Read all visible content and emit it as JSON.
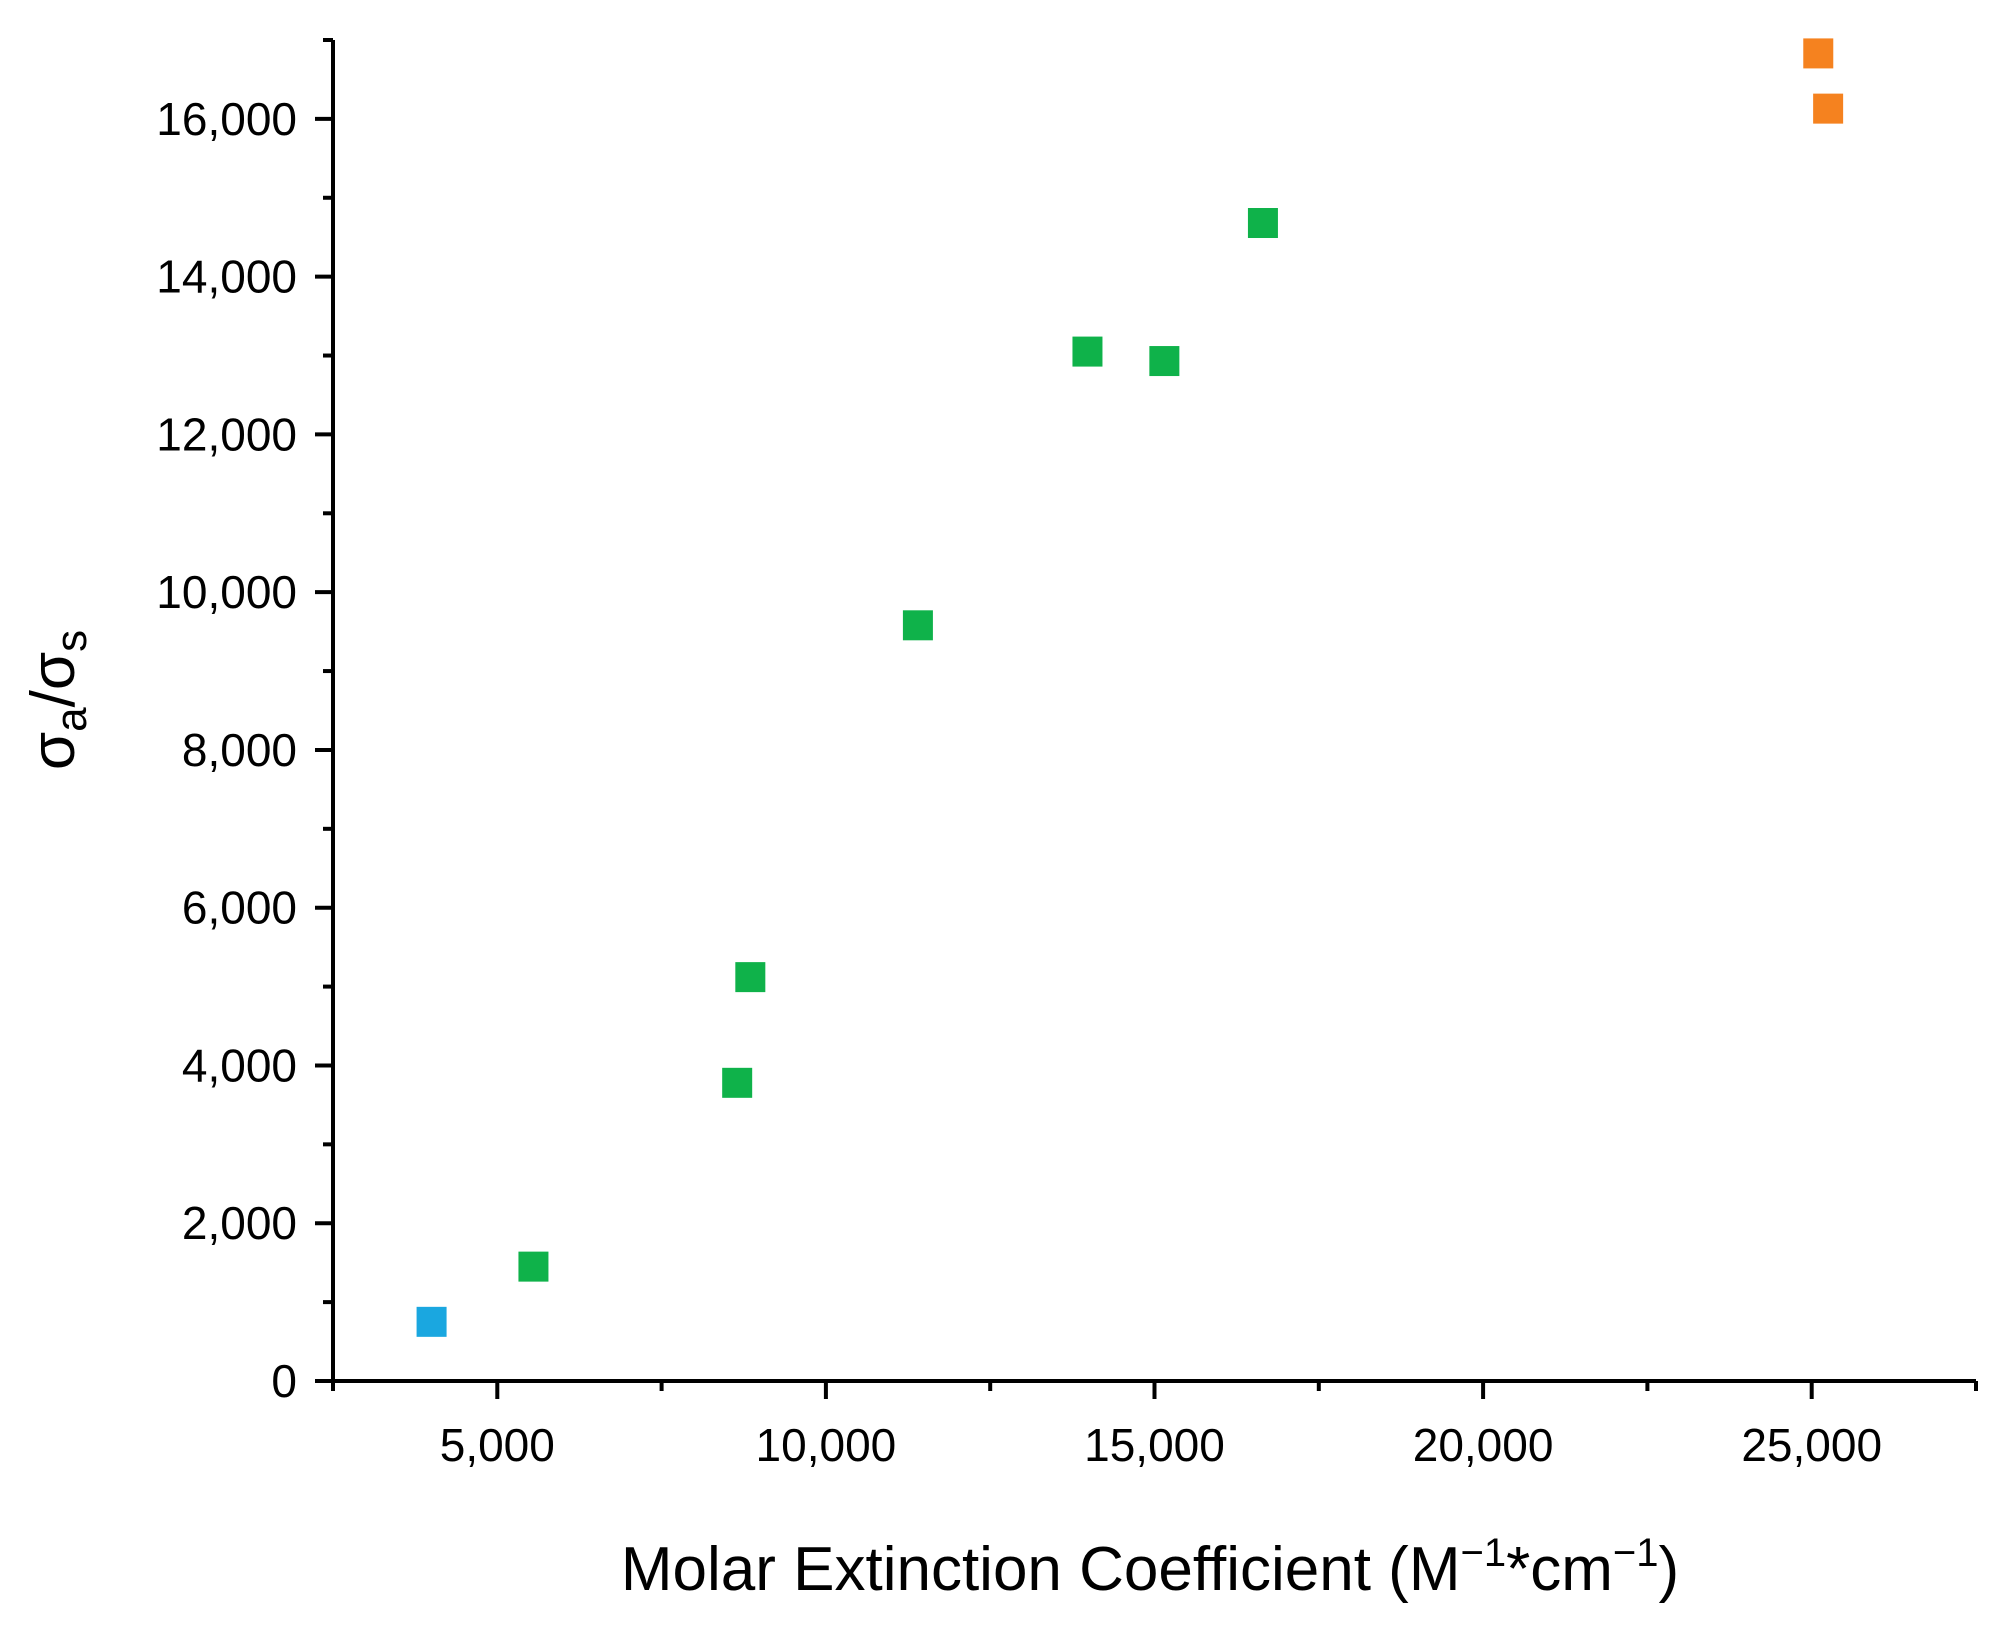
{
  "chart_data": {
    "type": "scatter",
    "title": "",
    "xlabel": "Molar Extinction Coefficient (M⁻¹*cm⁻¹)",
    "xlabel_parts": {
      "main": "Molar Extinction Coefficient (M",
      "sup1": "−1",
      "mid": "*cm",
      "sup2": "−1",
      "end": ")"
    },
    "ylabel": "σa/σs",
    "ylabel_parts": {
      "sigma1": "σ",
      "sub1": "a",
      "slash": "/",
      "sigma2": "σ",
      "sub2": "s"
    },
    "xlim": [
      2500,
      27500
    ],
    "ylim": [
      0,
      17000
    ],
    "xticks": [
      5000,
      10000,
      15000,
      20000,
      25000
    ],
    "xtick_labels": [
      "5,000",
      "10,000",
      "15,000",
      "20,000",
      "25,000"
    ],
    "xminor": [
      2500,
      7500,
      12500,
      17500,
      22500,
      27500
    ],
    "yticks": [
      0,
      2000,
      4000,
      6000,
      8000,
      10000,
      12000,
      14000,
      16000
    ],
    "ytick_labels": [
      "0",
      "2,000",
      "4,000",
      "6,000",
      "8,000",
      "10,000",
      "12,000",
      "14,000",
      "16,000"
    ],
    "yminor": [
      1000,
      3000,
      5000,
      7000,
      9000,
      11000,
      13000,
      15000,
      17000
    ],
    "grid": false,
    "series": [
      {
        "name": "blue",
        "color": "#1aa7e0",
        "marker": "square",
        "points": [
          {
            "x": 4000,
            "y": 750
          }
        ]
      },
      {
        "name": "green",
        "color": "#0fb24a",
        "marker": "square",
        "points": [
          {
            "x": 5550,
            "y": 1450
          },
          {
            "x": 8650,
            "y": 3780
          },
          {
            "x": 8850,
            "y": 5120
          },
          {
            "x": 11400,
            "y": 9580
          },
          {
            "x": 13980,
            "y": 13050
          },
          {
            "x": 15150,
            "y": 12930
          },
          {
            "x": 16650,
            "y": 14680
          }
        ]
      },
      {
        "name": "orange",
        "color": "#f5821f",
        "marker": "square",
        "points": [
          {
            "x": 25100,
            "y": 16830
          },
          {
            "x": 25250,
            "y": 16130
          }
        ]
      }
    ]
  }
}
